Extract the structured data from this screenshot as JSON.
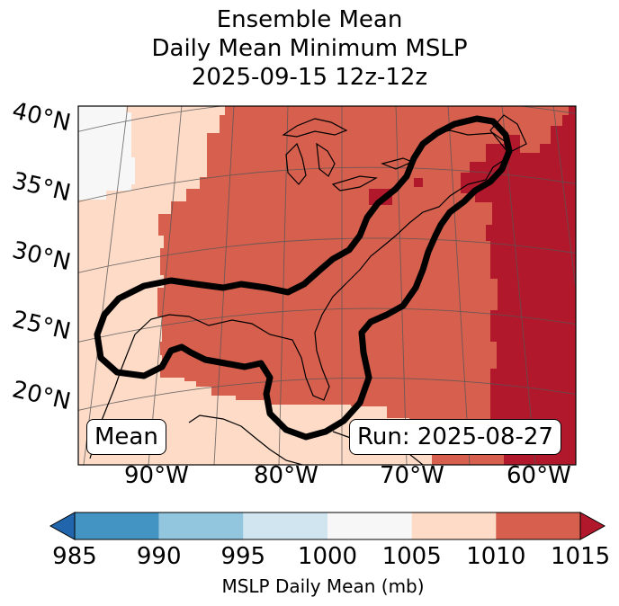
{
  "title": {
    "line1": "Ensemble Mean",
    "line2": "Daily Mean Minimum MSLP",
    "line3": "2025-09-15 12z-12z"
  },
  "map": {
    "lat_labels": [
      "40°N",
      "35°N",
      "30°N",
      "25°N",
      "20°N"
    ],
    "lon_labels": [
      "90°W",
      "80°W",
      "70°W",
      "60°W"
    ],
    "mean_box": "Mean",
    "run_box": "Run: 2025-08-27",
    "region_levels": [
      "1000",
      "1005",
      "1010",
      "1015"
    ]
  },
  "colorbar": {
    "ticks": [
      "985",
      "990",
      "995",
      "1000",
      "1005",
      "1010",
      "1015"
    ],
    "label": "MSLP Daily Mean (mb)",
    "colors": {
      "under": "#2166ac",
      "c985_990": "#4393c3",
      "c990_995": "#92c5de",
      "c995_1000": "#d1e5f0",
      "c1000_1005": "#f7f7f7",
      "c1005_1010": "#fddbc7",
      "c1010_1015": "#d6604d",
      "over": "#b2182b"
    }
  }
}
